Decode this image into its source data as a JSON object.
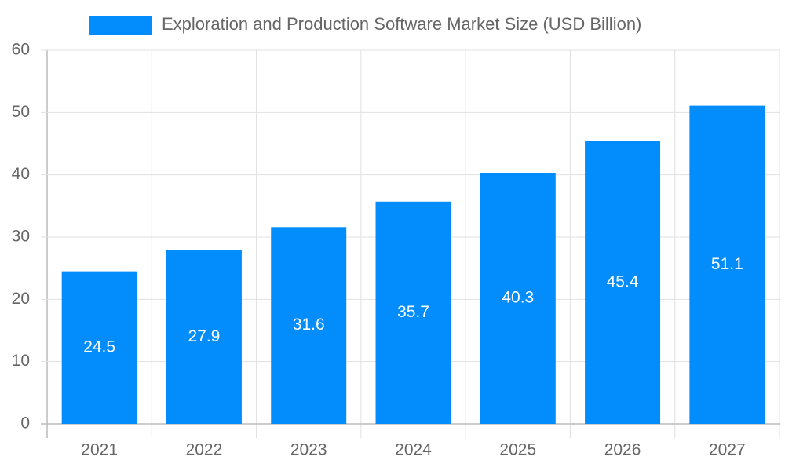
{
  "chart_data": {
    "type": "bar",
    "categories": [
      "2021",
      "2022",
      "2023",
      "2024",
      "2025",
      "2026",
      "2027"
    ],
    "series": [
      {
        "name": "Exploration and Production Software Market Size (USD Billion)",
        "color": "#038cfc",
        "values": [
          24.5,
          27.9,
          31.6,
          35.7,
          40.3,
          45.4,
          51.1
        ]
      }
    ],
    "ylim": [
      0,
      60
    ],
    "yticks": [
      0,
      10,
      20,
      30,
      40,
      50,
      60
    ],
    "grid": true,
    "legend": "top",
    "data_labels": true
  }
}
